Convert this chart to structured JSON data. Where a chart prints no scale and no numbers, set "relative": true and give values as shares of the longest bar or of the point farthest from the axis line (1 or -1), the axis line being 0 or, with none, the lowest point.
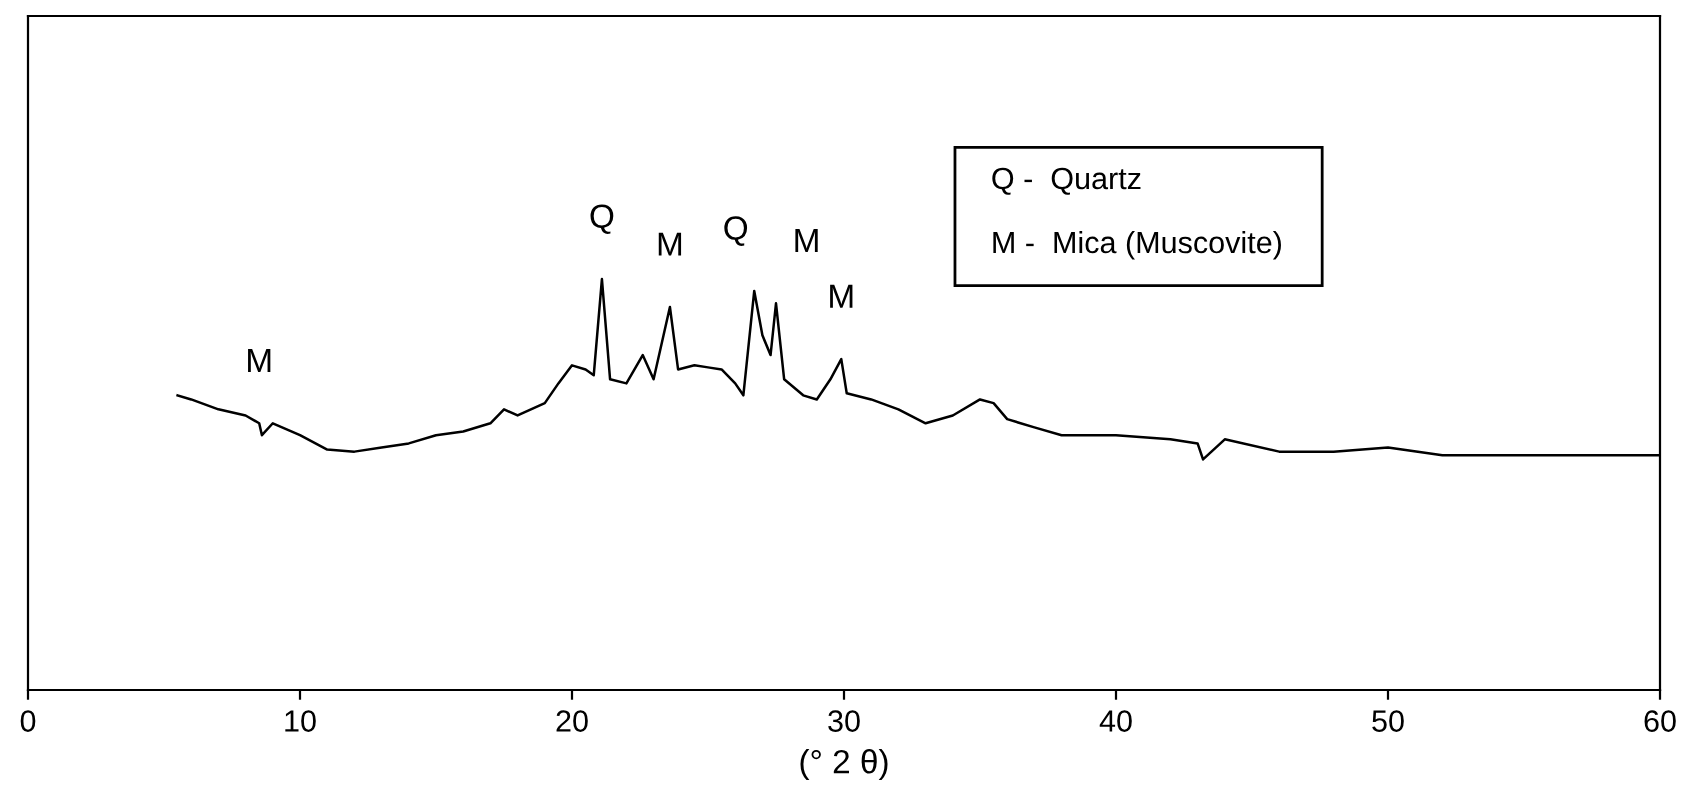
{
  "chart_data": {
    "type": "line",
    "relative": true,
    "xlabel": "(° 2 θ)",
    "xlim": [
      0,
      60
    ],
    "xticks": [
      0,
      10,
      20,
      30,
      40,
      50,
      60
    ],
    "grid": false,
    "legend": false,
    "marker": "none",
    "line_style": "solid",
    "series": [
      {
        "color": "#000000",
        "x": [
          5.5,
          6,
          7,
          8,
          8.5,
          8.6,
          9,
          10,
          11,
          12,
          13,
          14,
          15,
          16,
          17,
          17.5,
          18,
          19,
          19.5,
          20,
          20.5,
          20.8,
          21.1,
          21.4,
          22,
          22.6,
          23,
          23.6,
          23.9,
          24.5,
          25,
          25.5,
          26,
          26.3,
          26.7,
          27,
          27.3,
          27.5,
          27.8,
          28.5,
          29,
          29.5,
          29.9,
          30.1,
          31,
          32,
          33,
          34,
          35,
          35.5,
          36,
          37,
          38,
          40,
          42,
          43,
          43.2,
          44,
          46,
          48,
          50,
          52,
          54,
          56,
          58,
          60
        ],
        "values": [
          0.717,
          0.707,
          0.683,
          0.668,
          0.649,
          0.62,
          0.649,
          0.62,
          0.585,
          0.58,
          0.59,
          0.6,
          0.62,
          0.629,
          0.649,
          0.683,
          0.668,
          0.698,
          0.746,
          0.79,
          0.78,
          0.766,
          1,
          0.756,
          0.746,
          0.815,
          0.756,
          0.932,
          0.78,
          0.79,
          0.785,
          0.78,
          0.746,
          0.717,
          0.971,
          0.863,
          0.815,
          0.941,
          0.756,
          0.717,
          0.707,
          0.756,
          0.805,
          0.722,
          0.707,
          0.683,
          0.649,
          0.668,
          0.707,
          0.698,
          0.659,
          0.639,
          0.62,
          0.62,
          0.61,
          0.6,
          0.561,
          0.61,
          0.58,
          0.58,
          0.59,
          0.571,
          0.571,
          0.571,
          0.571,
          0.571
        ]
      }
    ],
    "annotations": [
      {
        "text": "M",
        "x": 8.5,
        "y": 0.649
      },
      {
        "text": "Q",
        "x": 21.1,
        "y": 1
      },
      {
        "text": "M",
        "x": 23.6,
        "y": 0.932
      },
      {
        "text": "Q",
        "x": 26.7,
        "y": 0.971
      },
      {
        "text": "M",
        "x": 27.5,
        "y": 0.941
      },
      {
        "text": "M",
        "x": 29.9,
        "y": 0.805
      },
      "Q -  Quartz",
      "M -  Mica (Muscovite)"
    ]
  }
}
